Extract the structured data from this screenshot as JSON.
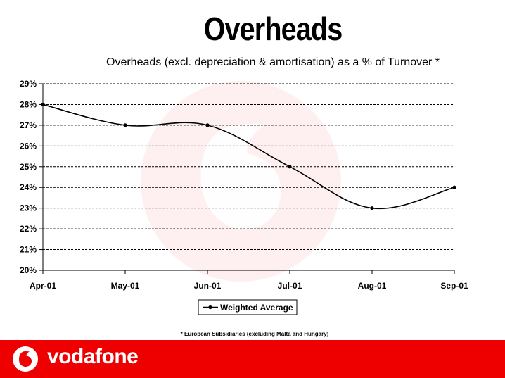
{
  "slide": {
    "title": "Overheads",
    "footnote": "* European Subsidiaries (excluding Malta and Hungary)"
  },
  "brand": {
    "name": "vodafone",
    "color": "#ee0000"
  },
  "chart_data": {
    "type": "line",
    "title": "Overheads (excl. depreciation & amortisation) as a % of Turnover *",
    "xlabel": "",
    "ylabel": "",
    "categories": [
      "Apr-01",
      "May-01",
      "Jun-01",
      "Jul-01",
      "Aug-01",
      "Sep-01"
    ],
    "series": [
      {
        "name": "Weighted Average",
        "values": [
          28,
          27,
          27,
          25,
          23,
          24
        ],
        "color": "#000000"
      }
    ],
    "ylim": [
      20,
      29
    ],
    "ytick_step": 1,
    "ytick_format": "percent",
    "grid": "horizontal-dashed",
    "smooth": true,
    "legend": "bottom-center"
  }
}
